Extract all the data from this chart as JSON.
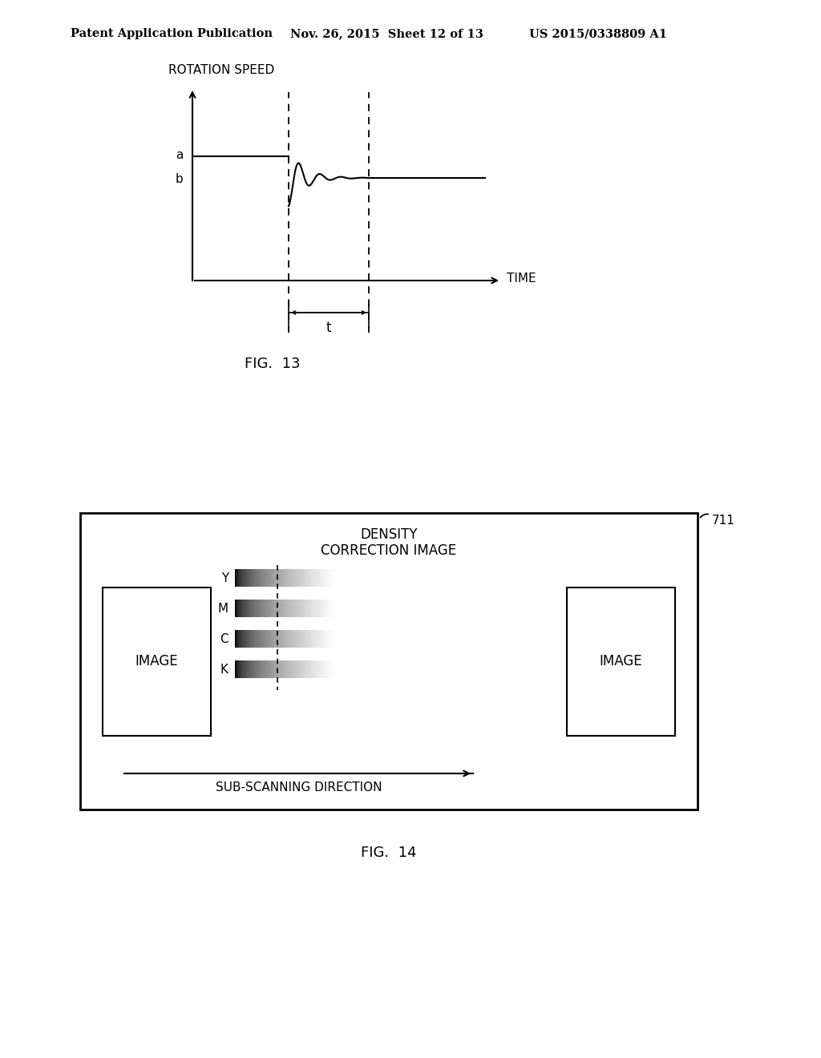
{
  "bg_color": "#ffffff",
  "header_left": "Patent Application Publication",
  "header_mid": "Nov. 26, 2015  Sheet 12 of 13",
  "header_right": "US 2015/0338809 A1",
  "fig13_label": "FIG.  13",
  "fig14_label": "FIG.  14",
  "fig13_ylabel": "ROTATION SPEED",
  "fig13_xlabel": "TIME",
  "fig13_a_label": "a",
  "fig13_b_label": "b",
  "fig13_t_label": "t",
  "fig14_title_line1": "DENSITY",
  "fig14_title_line2": "CORRECTION IMAGE",
  "fig14_sub_label": "SUB-SCANNING DIRECTION",
  "fig14_ref": "711",
  "fig14_ymck": [
    "Y",
    "M",
    "C",
    "K"
  ],
  "fig14_image_label": "IMAGE"
}
